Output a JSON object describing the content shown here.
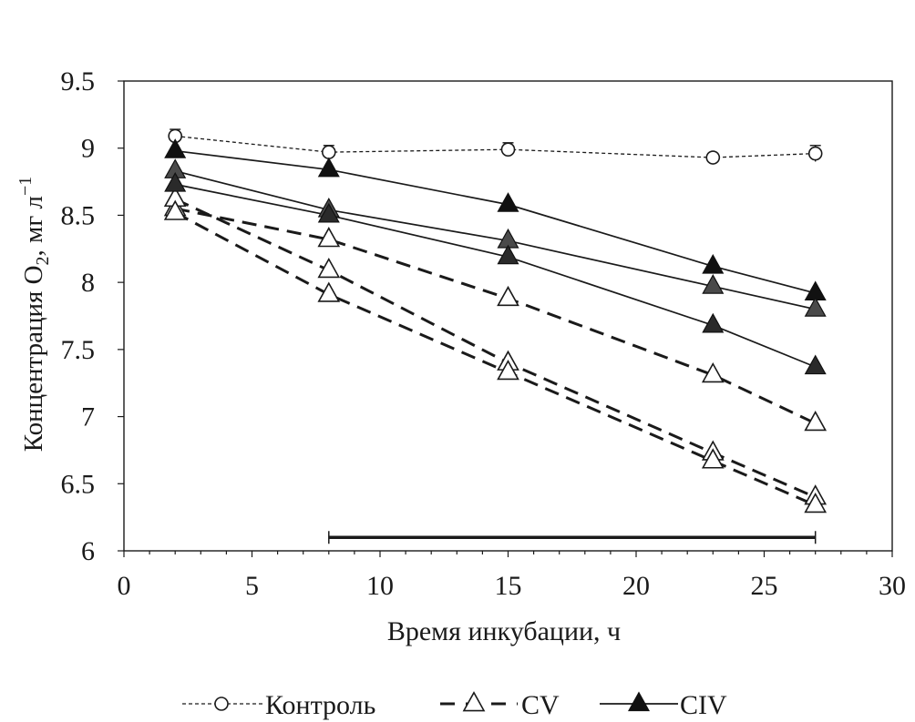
{
  "chart_data": {
    "type": "line",
    "title": "",
    "xlabel": "Время инкубации, ч",
    "ylabel": {
      "prefix": "Концентрация O",
      "subscript": "2",
      "units": "мг л",
      "units_superscript": "−1"
    },
    "xlim": [
      0,
      30
    ],
    "ylim": [
      6,
      9.5
    ],
    "xticks": [
      "0",
      "5",
      "10",
      "15",
      "20",
      "25",
      "30"
    ],
    "yticks": [
      "6",
      "6.5",
      "7",
      "7.5",
      "8",
      "8.5",
      "9",
      "9.5"
    ],
    "grid": false,
    "legend_position": "bottom",
    "legend": [
      {
        "label": "Контроль",
        "style": "dotted-open-circle"
      },
      {
        "label": "CV",
        "style": "dashed-open-triangle"
      },
      {
        "label": "CIV",
        "style": "solid-filled-triangle"
      }
    ],
    "series": [
      {
        "name": "Контроль",
        "group": "control",
        "x": [
          2,
          8,
          15,
          23,
          27
        ],
        "y": [
          9.09,
          8.97,
          8.99,
          8.93,
          8.96
        ],
        "error": [
          0.05,
          0.05,
          0.05,
          0.03,
          0.06
        ]
      },
      {
        "name": "CV",
        "group": "cv",
        "x": [
          2,
          8,
          15,
          23,
          27
        ],
        "y": [
          8.55,
          8.32,
          7.88,
          7.31,
          6.95
        ]
      },
      {
        "name": "CV",
        "group": "cv",
        "x": [
          2,
          8,
          15,
          23,
          27
        ],
        "y": [
          8.62,
          8.09,
          7.4,
          6.73,
          6.4
        ]
      },
      {
        "name": "CV",
        "group": "cv",
        "x": [
          2,
          8,
          15,
          23,
          27
        ],
        "y": [
          8.52,
          7.91,
          7.33,
          6.67,
          6.34
        ]
      },
      {
        "name": "CIV",
        "group": "civ",
        "x": [
          2,
          8,
          15,
          23,
          27
        ],
        "y": [
          8.98,
          8.84,
          8.58,
          8.12,
          7.92
        ]
      },
      {
        "name": "CIV",
        "group": "civ",
        "x": [
          2,
          8,
          15,
          23,
          27
        ],
        "y": [
          8.83,
          8.54,
          8.31,
          7.97,
          7.8
        ]
      },
      {
        "name": "CIV",
        "group": "civ",
        "x": [
          2,
          8,
          15,
          23,
          27
        ],
        "y": [
          8.73,
          8.5,
          8.19,
          7.68,
          7.37
        ]
      }
    ],
    "annotations": [
      {
        "type": "range-bar",
        "x_start": 8,
        "x_end": 27,
        "y": 6.1
      }
    ]
  }
}
